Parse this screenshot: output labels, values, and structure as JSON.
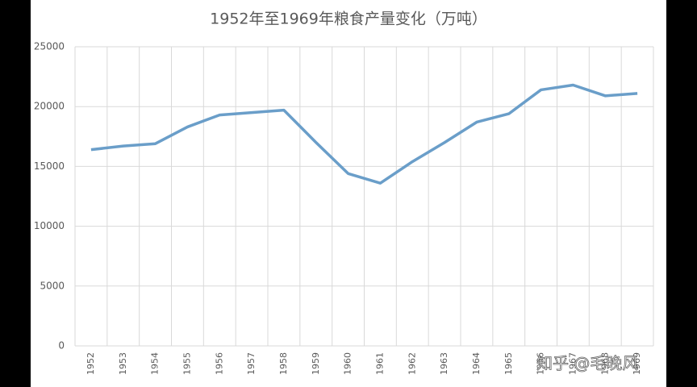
{
  "chart_data": {
    "type": "line",
    "title": "1952年至1969年粮食产量变化（万吨）",
    "categories": [
      "1952",
      "1953",
      "1954",
      "1955",
      "1956",
      "1957",
      "1958",
      "1959",
      "1960",
      "1961",
      "1962",
      "1963",
      "1964",
      "1965",
      "1966",
      "1967",
      "1968",
      "1969"
    ],
    "series": [
      {
        "name": "粮食产量",
        "color": "#6a9ec9",
        "values": [
          16400,
          16700,
          16900,
          18300,
          19300,
          19500,
          19700,
          17000,
          14400,
          13600,
          15400,
          17000,
          18700,
          19400,
          21400,
          21800,
          20900,
          21100
        ]
      }
    ],
    "ylim": [
      0,
      25000
    ],
    "yticks": [
      0,
      5000,
      10000,
      15000,
      20000,
      25000
    ],
    "grid": true,
    "watermark": "知乎 @毛晚风"
  }
}
